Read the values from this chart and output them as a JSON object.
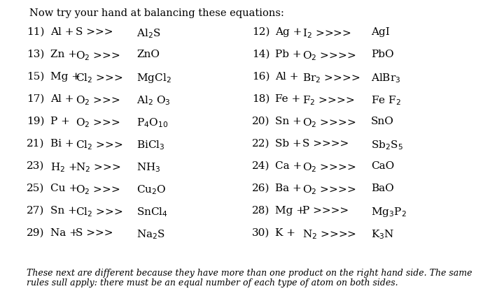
{
  "title": "Now try your hand at balancing these equations:",
  "footer_line1": "These next are different because they have more than one product on the right hand side. The same",
  "footer_line2": "rules sull apply: there must be an equal number of each type of atom on both sides.",
  "background_color": "#ffffff",
  "text_color": "#000000",
  "equations_left": [
    {
      "num": "11)",
      "part1": "Al +",
      "part2": "S >>>",
      "product": "Al$_2$S"
    },
    {
      "num": "13)",
      "part1": "Zn +",
      "part2": "O$_2$ >>>",
      "product": "ZnO"
    },
    {
      "num": "15)",
      "part1": "Mg +",
      "part2": "Cl$_2$ >>>",
      "product": "MgCl$_2$"
    },
    {
      "num": "17)",
      "part1": "Al +",
      "part2": "O$_2$ >>>",
      "product": "Al$_2$ O$_3$"
    },
    {
      "num": "19)",
      "part1": "P +",
      "part2": "O$_2$ >>>",
      "product": "P$_4$O$_{10}$"
    },
    {
      "num": "21)",
      "part1": "Bi +",
      "part2": "Cl$_2$ >>>",
      "product": "BiCl$_3$"
    },
    {
      "num": "23)",
      "part1": "H$_2$ +",
      "part2": "N$_2$ >>>",
      "product": "NH$_3$"
    },
    {
      "num": "25)",
      "part1": "Cu +",
      "part2": "O$_2$ >>>",
      "product": "Cu$_2$O"
    },
    {
      "num": "27)",
      "part1": "Sn +",
      "part2": "Cl$_2$ >>>",
      "product": "SnCl$_4$"
    },
    {
      "num": "29)",
      "part1": "Na +",
      "part2": "S >>>",
      "product": "Na$_2$S"
    }
  ],
  "equations_right": [
    {
      "num": "12)",
      "part1": "Ag +",
      "part2": "I$_2$ >>>>",
      "product": "AgI"
    },
    {
      "num": "14)",
      "part1": "Pb +",
      "part2": "O$_2$ >>>>",
      "product": "PbO"
    },
    {
      "num": "16)",
      "part1": "Al +",
      "part2": "Br$_2$ >>>>",
      "product": "AlBr$_3$"
    },
    {
      "num": "18)",
      "part1": "Fe +",
      "part2": "F$_2$ >>>>",
      "product": "Fe F$_2$"
    },
    {
      "num": "20)",
      "part1": "Sn +",
      "part2": "O$_2$ >>>>",
      "product": "SnO"
    },
    {
      "num": "22)",
      "part1": "Sb +",
      "part2": "S >>>>",
      "product": "Sb$_2$S$_5$"
    },
    {
      "num": "24)",
      "part1": "Ca +",
      "part2": "O$_2$ >>>>",
      "product": "CaO"
    },
    {
      "num": "26)",
      "part1": "Ba +",
      "part2": "O$_2$ >>>>",
      "product": "BaO"
    },
    {
      "num": "28)",
      "part1": "Mg +",
      "part2": "P >>>>",
      "product": "Mg$_3$P$_2$"
    },
    {
      "num": "30)",
      "part1": "K +",
      "part2": "N$_2$ >>>>",
      "product": "K$_3$N"
    }
  ],
  "font_size": 11,
  "title_font_size": 10.5,
  "footer_font_size": 9
}
